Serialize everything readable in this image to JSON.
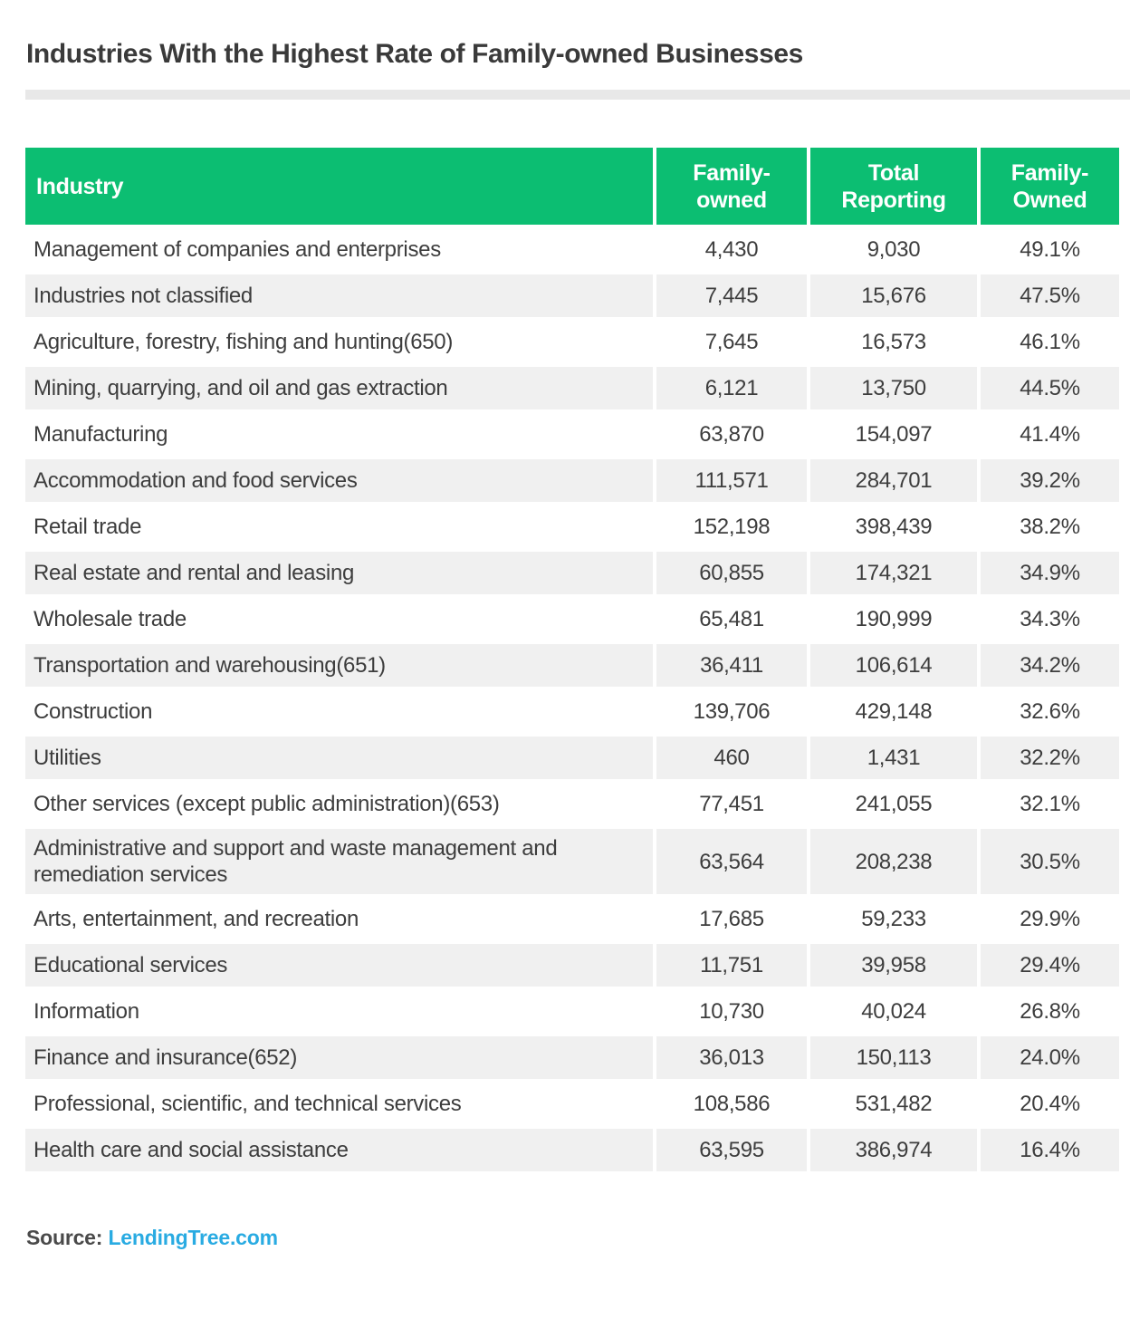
{
  "title": "Industries With the Highest Rate of Family-owned Businesses",
  "chart_data": {
    "type": "table",
    "title": "Industries With the Highest Rate of Family-owned Businesses",
    "columns": [
      "Industry",
      "Family-owned",
      "Total Reporting",
      "Family-Owned"
    ],
    "rows": [
      [
        "Management of companies and enterprises",
        "4,430",
        "9,030",
        "49.1%"
      ],
      [
        "Industries not classified",
        "7,445",
        "15,676",
        "47.5%"
      ],
      [
        "Agriculture, forestry, fishing and hunting(650)",
        "7,645",
        "16,573",
        "46.1%"
      ],
      [
        "Mining, quarrying, and oil and gas extraction",
        "6,121",
        "13,750",
        "44.5%"
      ],
      [
        "Manufacturing",
        "63,870",
        "154,097",
        "41.4%"
      ],
      [
        "Accommodation and food services",
        "111,571",
        "284,701",
        "39.2%"
      ],
      [
        "Retail trade",
        "152,198",
        "398,439",
        "38.2%"
      ],
      [
        "Real estate and rental and leasing",
        "60,855",
        "174,321",
        "34.9%"
      ],
      [
        "Wholesale trade",
        "65,481",
        "190,999",
        "34.3%"
      ],
      [
        "Transportation and warehousing(651)",
        "36,411",
        "106,614",
        "34.2%"
      ],
      [
        "Construction",
        "139,706",
        "429,148",
        "32.6%"
      ],
      [
        "Utilities",
        "460",
        "1,431",
        "32.2%"
      ],
      [
        "Other services (except public administration)(653)",
        "77,451",
        "241,055",
        "32.1%"
      ],
      [
        "Administrative and support and waste management and remediation services",
        "63,564",
        "208,238",
        "30.5%"
      ],
      [
        "Arts, entertainment, and recreation",
        "17,685",
        "59,233",
        "29.9%"
      ],
      [
        "Educational services",
        "11,751",
        "39,958",
        "29.4%"
      ],
      [
        "Information",
        "10,730",
        "40,024",
        "26.8%"
      ],
      [
        "Finance and insurance(652)",
        "36,013",
        "150,113",
        "24.0%"
      ],
      [
        "Professional, scientific, and technical services",
        "108,586",
        "531,482",
        "20.4%"
      ],
      [
        "Health care and social assistance",
        "63,595",
        "386,974",
        "16.4%"
      ]
    ]
  },
  "header_lines": {
    "family_owned": [
      "Family-",
      "owned"
    ],
    "total_reporting": [
      "Total",
      "Reporting"
    ],
    "family_owned_pct": [
      "Family-",
      "Owned"
    ]
  },
  "footer": {
    "source_label": "Source:",
    "source_link_text": "LendingTree.com"
  },
  "colors": {
    "header_green": "#0cbe72",
    "row_alt": "#f0f0f0",
    "link_blue": "#29abe2",
    "divider_gray": "#e8e8e8",
    "body_text": "#3d3d3d",
    "title_text": "#3a3a3a",
    "source_text": "#4a4a4a"
  }
}
